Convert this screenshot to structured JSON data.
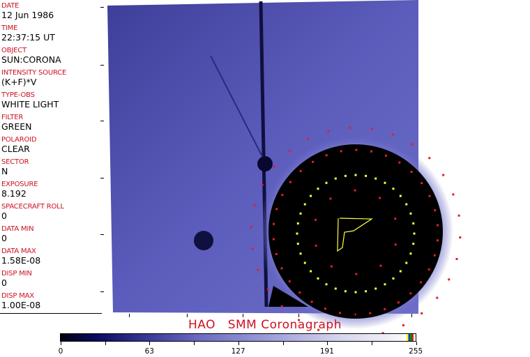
{
  "header": [
    {
      "label": "DATE",
      "value": "12 Jun 1986"
    },
    {
      "label": "TIME",
      "value": "22:37:15 UT"
    },
    {
      "label": "OBJECT",
      "value": "SUN:CORONA"
    },
    {
      "label": "INTENSITY SOURCE",
      "value": "(K+F)*V"
    },
    {
      "label": "TYPE-OBS",
      "value": "WHITE LIGHT"
    },
    {
      "label": "FILTER",
      "value": "GREEN"
    },
    {
      "label": "POLAROID",
      "value": "CLEAR"
    },
    {
      "label": "SECTOR",
      "value": "N"
    },
    {
      "label": "EXPOSURE",
      "value": "8.192"
    },
    {
      "label": "SPACECRAFT ROLL",
      "value": "0"
    },
    {
      "label": "DATA MIN",
      "value": "0"
    },
    {
      "label": "DATA MAX",
      "value": "1.58E-08"
    },
    {
      "label": "DISP MIN",
      "value": "0"
    },
    {
      "label": "DISP MAX",
      "value": "1.00E-08"
    }
  ],
  "title": "HAO   SMM Coronagraph",
  "colorbar": {
    "ticks": [
      "0",
      "63",
      "127",
      "191",
      "255"
    ],
    "colors": {
      "low": "#000010",
      "mid": "#6e6ec4",
      "high": "#ffffff"
    }
  },
  "colors": {
    "label": "#cc1122",
    "overlay_red": "#e0202a",
    "overlay_yellow": "#ffff40",
    "sky": "#5a5ab8"
  }
}
